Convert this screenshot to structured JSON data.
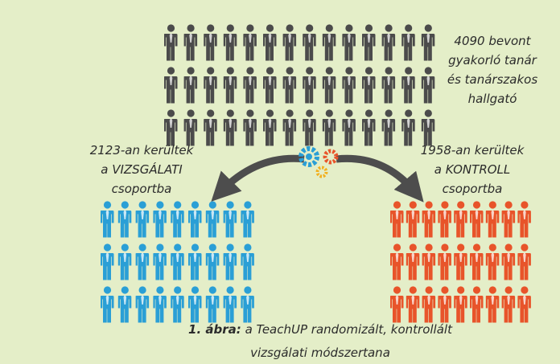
{
  "participants": {
    "lines": [
      "4090 bevont",
      "gyakorló tanár",
      "és tanárszakos",
      "hallgató"
    ]
  },
  "test_group": {
    "lines": [
      "2123-an kerültek",
      "a VIZSGÁLATI",
      "csoportba"
    ]
  },
  "control_group": {
    "lines": [
      "1958-an kerültek",
      "a KONTROLL",
      "csoportba"
    ]
  },
  "caption": {
    "label": "1. ábra:",
    "lines": [
      "a TeachUP randomizált, kontrollált",
      "vizsgálati módszertana"
    ]
  }
}
